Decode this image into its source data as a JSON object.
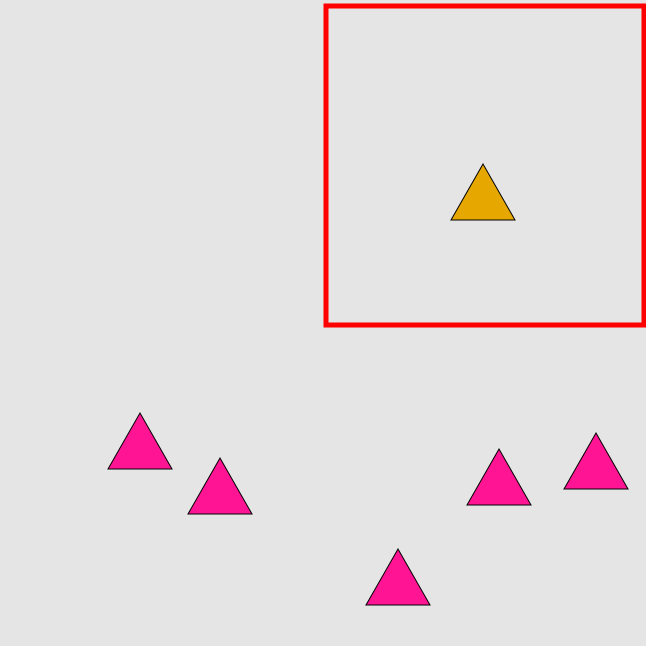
{
  "scene": {
    "background": "#e5e5e5",
    "highlight_box": {
      "color": "#ff0000",
      "meaning": "selected region"
    },
    "shapes": [
      {
        "kind": "triangle",
        "color": "#e6a800",
        "selected": true
      },
      {
        "kind": "triangle",
        "color": "#ff1493",
        "selected": false
      },
      {
        "kind": "triangle",
        "color": "#ff1493",
        "selected": false
      },
      {
        "kind": "triangle",
        "color": "#ff1493",
        "selected": false
      },
      {
        "kind": "triangle",
        "color": "#ff1493",
        "selected": false
      },
      {
        "kind": "triangle",
        "color": "#ff1493",
        "selected": false
      }
    ]
  }
}
